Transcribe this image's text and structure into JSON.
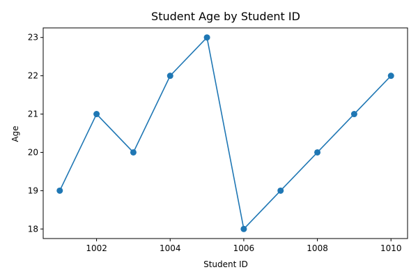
{
  "chart_data": {
    "type": "line",
    "title": "Student Age by Student ID",
    "xlabel": "Student ID",
    "ylabel": "Age",
    "x": [
      1001,
      1002,
      1003,
      1004,
      1005,
      1006,
      1007,
      1008,
      1009,
      1010
    ],
    "series": [
      {
        "values": [
          19,
          21,
          20,
          22,
          23,
          18,
          19,
          20,
          21,
          22
        ],
        "color": "#1f77b4",
        "marker": "circle"
      }
    ],
    "xlim": [
      1000.55,
      1010.45
    ],
    "ylim": [
      17.75,
      23.25
    ],
    "xticks": [
      1002,
      1004,
      1006,
      1008,
      1010
    ],
    "yticks": [
      18,
      19,
      20,
      21,
      22,
      23
    ],
    "grid": false,
    "legend": "none"
  }
}
